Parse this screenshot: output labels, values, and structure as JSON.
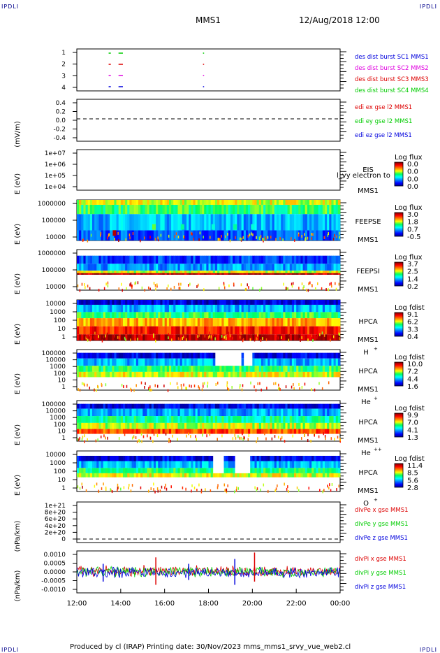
{
  "header": {
    "corner_left": "IPDLI",
    "corner_right": "IPDLI",
    "mission": "MMS1",
    "datetime": "12/Aug/2018 12:00"
  },
  "footer": {
    "text": "Produced by cl (IRAP)   Printing date: 30/Nov/2023   mms_mms1_srvy_vue_web2.cl",
    "corner_left": "IPDLI",
    "corner_right": "IPDLI"
  },
  "colors": {
    "blue": "#0000dd",
    "magenta": "#e000e0",
    "red": "#dd0000",
    "green": "#00cc00"
  },
  "chart_data": [
    {
      "type": "scatter",
      "id": "dist_burst",
      "ylabel": "",
      "yticks": [
        "1",
        "2",
        "3",
        "4"
      ],
      "ylim": [
        0.5,
        4.5
      ],
      "legend": [
        {
          "label": "des dist burst SC1 MMS1",
          "color": "#0000dd"
        },
        {
          "label": "des dist burst SC2 MMS2",
          "color": "#e000e0"
        },
        {
          "label": "des dist burst SC3 MMS3",
          "color": "#dd0000"
        },
        {
          "label": "des dist burst SC4 MMS4",
          "color": "#00cc00"
        }
      ],
      "series": [
        {
          "level": 1,
          "color": "#0000dd",
          "intervals": [
            [
              13.45,
              13.55
            ],
            [
              13.9,
              14.1
            ],
            [
              17.75,
              17.8
            ]
          ]
        },
        {
          "level": 2,
          "color": "#e000e0",
          "intervals": [
            [
              13.45,
              13.55
            ],
            [
              13.9,
              14.1
            ],
            [
              17.75,
              17.8
            ]
          ]
        },
        {
          "level": 3,
          "color": "#dd0000",
          "intervals": [
            [
              13.45,
              13.55
            ],
            [
              13.9,
              14.1
            ],
            [
              17.75,
              17.8
            ]
          ]
        },
        {
          "level": 4,
          "color": "#00cc00",
          "intervals": [
            [
              13.45,
              13.55
            ],
            [
              13.9,
              14.1
            ],
            [
              17.75,
              17.8
            ]
          ]
        }
      ]
    },
    {
      "type": "line",
      "id": "edi_e",
      "ylabel": "(mV/m)",
      "yticks": [
        "0.4",
        "0.2",
        "0.0",
        "-0.2",
        "-0.4"
      ],
      "ylim": [
        -0.6,
        0.6
      ],
      "zero_line": true,
      "legend": [
        {
          "label": "edi ex gse l2 MMS1",
          "color": "#dd0000"
        },
        {
          "label": "edi ey gse l2 MMS1",
          "color": "#00cc00"
        },
        {
          "label": "edi ez gse l2 MMS1",
          "color": "#0000dd"
        }
      ]
    },
    {
      "type": "heatmap",
      "id": "eis",
      "ylabel": "E (eV)",
      "yticks": [
        "1e+07",
        "1e+06",
        "1e+05",
        "1e+04"
      ],
      "label": [
        "EIS",
        "MMS1"
      ],
      "overlay_text": "l_vy electron to",
      "colorbar": {
        "title": "Log flux",
        "ticks": [
          "0.0",
          "0.0",
          "0.0",
          "0.0"
        ]
      },
      "empty": true
    },
    {
      "type": "heatmap",
      "id": "feepse",
      "ylabel": "E (eV)",
      "yticks": [
        "1000000",
        "100000",
        "10000"
      ],
      "label": [
        "FEEPSE",
        "MMS1"
      ],
      "colorbar": {
        "title": "Log flux",
        "ticks": [
          "3.0",
          "1.8",
          "0.7",
          "-0.5"
        ]
      },
      "bands": [
        [
          0.0,
          0.12,
          0.62
        ],
        [
          0.12,
          0.35,
          0.5
        ],
        [
          0.35,
          0.75,
          0.3
        ],
        [
          0.75,
          1.0,
          0.2
        ]
      ],
      "spikes": [
        [
          13.7,
          0.85,
          0.95
        ],
        [
          15.5,
          0.7,
          0.55
        ],
        [
          16.8,
          0.7,
          0.45
        ],
        [
          18.2,
          0.7,
          0.4
        ],
        [
          19.2,
          0.7,
          0.45
        ],
        [
          20.0,
          0.7,
          0.4
        ]
      ]
    },
    {
      "type": "heatmap",
      "id": "feepsi",
      "ylabel": "E (eV)",
      "yticks": [
        "1000000",
        "100000",
        "10000"
      ],
      "label": [
        "FEEPSI",
        "MMS1"
      ],
      "colorbar": {
        "title": "Log flux",
        "ticks": [
          "3.7",
          "2.5",
          "1.4",
          "0.2"
        ]
      },
      "bands": [
        [
          0.15,
          0.35,
          0.18
        ],
        [
          0.35,
          0.52,
          0.28
        ],
        [
          0.52,
          0.58,
          0.62
        ],
        [
          0.58,
          0.62,
          0.95
        ]
      ]
    },
    {
      "type": "heatmap",
      "id": "hpca_h",
      "ylabel": "E (eV)",
      "yticks": [
        "10000",
        "1000",
        "100",
        "10",
        "1"
      ],
      "label": [
        "HPCA",
        "MMS1",
        "H",
        "+"
      ],
      "colorbar": {
        "title": "Log fdist",
        "ticks": [
          "9.1",
          "6.2",
          "3.3",
          "0.4"
        ]
      },
      "bands": [
        [
          0.0,
          0.12,
          0.08
        ],
        [
          0.12,
          0.3,
          0.3
        ],
        [
          0.3,
          0.45,
          0.5
        ],
        [
          0.45,
          0.65,
          0.7
        ],
        [
          0.65,
          0.85,
          0.85
        ],
        [
          0.85,
          1.0,
          0.95
        ]
      ]
    },
    {
      "type": "heatmap",
      "id": "hpca_he1",
      "ylabel": "E (eV)",
      "yticks": [
        "100000",
        "10000",
        "1000",
        "100",
        "10",
        "1"
      ],
      "label": [
        "HPCA",
        "MMS1",
        "He",
        "+"
      ],
      "colorbar": {
        "title": "Log fdist",
        "ticks": [
          "10.0",
          "7.2",
          "4.4",
          "1.6"
        ]
      },
      "bands": [
        [
          0.08,
          0.22,
          0.1
        ],
        [
          0.22,
          0.4,
          0.3
        ],
        [
          0.4,
          0.55,
          0.5
        ],
        [
          0.55,
          0.68,
          0.62
        ]
      ],
      "gaps": [
        [
          18.3,
          19.5
        ],
        [
          19.6,
          20.0
        ]
      ]
    },
    {
      "type": "heatmap",
      "id": "hpca_he2",
      "ylabel": "E (eV)",
      "yticks": [
        "100000",
        "10000",
        "1000",
        "100",
        "10",
        "1"
      ],
      "label": [
        "HPCA",
        "MMS1",
        "He",
        "++"
      ],
      "colorbar": {
        "title": "Log fdist",
        "ticks": [
          "9.9",
          "7.0",
          "4.1",
          "1.3"
        ]
      },
      "bands": [
        [
          0.08,
          0.2,
          0.1
        ],
        [
          0.2,
          0.38,
          0.28
        ],
        [
          0.38,
          0.55,
          0.45
        ],
        [
          0.55,
          0.7,
          0.6
        ],
        [
          0.7,
          0.82,
          0.8
        ]
      ]
    },
    {
      "type": "heatmap",
      "id": "hpca_o",
      "ylabel": "E (eV)",
      "yticks": [
        "10000",
        "1000",
        "100",
        "10",
        "1"
      ],
      "label": [
        "HPCA",
        "MMS1",
        "O",
        "+"
      ],
      "colorbar": {
        "title": "Log fdist",
        "ticks": [
          "11.4",
          "8.5",
          "5.6",
          "2.8"
        ]
      },
      "bands": [
        [
          0.12,
          0.25,
          0.1
        ],
        [
          0.25,
          0.42,
          0.3
        ],
        [
          0.42,
          0.55,
          0.48
        ],
        [
          0.55,
          0.65,
          0.62
        ]
      ],
      "gaps": [
        [
          18.2,
          18.7
        ],
        [
          19.2,
          19.9
        ]
      ]
    },
    {
      "type": "line",
      "id": "divpe",
      "ylabel": "(nPa/km)",
      "yticks": [
        "1e+21",
        "8e+20",
        "6e+20",
        "4e+20",
        "2e+20",
        "0"
      ],
      "ylim": [
        0,
        1e+21
      ],
      "zero_line": true,
      "legend": [
        {
          "label": "divPe x gse MMS1",
          "color": "#dd0000"
        },
        {
          "label": "divPe y gse MMS1",
          "color": "#00cc00"
        },
        {
          "label": "divPe z gse MMS1",
          "color": "#0000dd"
        }
      ]
    },
    {
      "type": "line",
      "id": "divpi",
      "ylabel": "(nPa/km)",
      "yticks": [
        "0.0010",
        "0.0005",
        "0.0000",
        "-0.0005",
        "-0.0010"
      ],
      "ylim": [
        -0.0013,
        0.0013
      ],
      "legend": [
        {
          "label": "divPi x gse MMS1",
          "color": "#dd0000"
        },
        {
          "label": "divPi y gse MMS1",
          "color": "#00cc00"
        },
        {
          "label": "divPi z gse MMS1",
          "color": "#0000dd"
        }
      ],
      "spikes": [
        {
          "x": 15.6,
          "ymin": -0.0008,
          "ymax": 0.0009,
          "color": "#dd0000"
        },
        {
          "x": 19.2,
          "ymin": -0.0008,
          "ymax": 0.0008,
          "color": "#0000dd"
        },
        {
          "x": 20.1,
          "ymin": -0.0006,
          "ymax": 0.0012,
          "color": "#dd0000"
        },
        {
          "x": 13.2,
          "ymin": -0.0006,
          "ymax": 0.0005,
          "color": "#0000dd"
        },
        {
          "x": 17.1,
          "ymin": -0.0005,
          "ymax": 0.0005,
          "color": "#0000dd"
        }
      ]
    }
  ],
  "xaxis": {
    "ticks": [
      "12:00",
      "14:00",
      "16:00",
      "18:00",
      "20:00",
      "22:00",
      "00:00"
    ],
    "values": [
      12,
      14,
      16,
      18,
      20,
      22,
      24
    ],
    "range": [
      12,
      24
    ]
  }
}
